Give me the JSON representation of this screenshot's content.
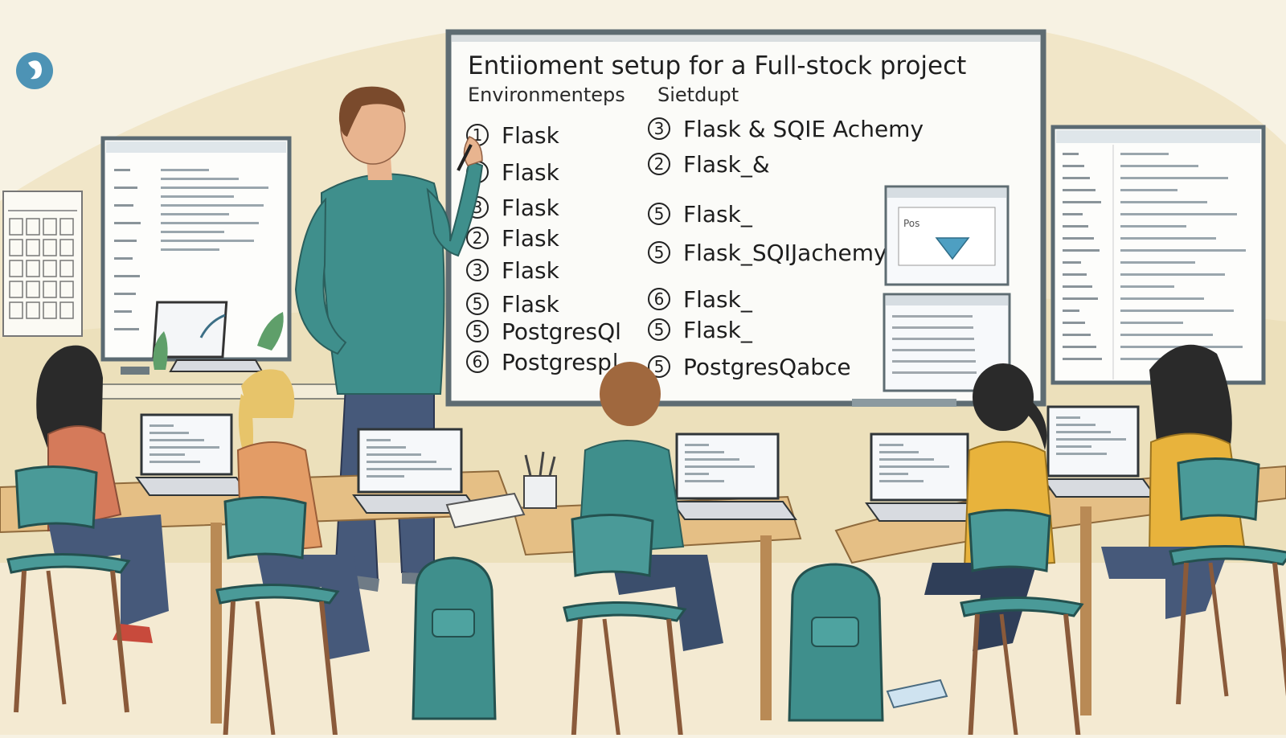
{
  "whiteboard": {
    "title": "Entiioment setup for a Full-stock project",
    "col1_header": "Environmenteps",
    "col2_header": "Sietdupt",
    "col1_items": [
      {
        "num": "1",
        "label": "Flask"
      },
      {
        "num": "6",
        "label": "Flask"
      },
      {
        "num": "3",
        "label": "Flask"
      },
      {
        "num": "2",
        "label": "Flask"
      },
      {
        "num": "3",
        "label": "Flask"
      },
      {
        "num": "5",
        "label": "Flask"
      },
      {
        "num": "5",
        "label": "PostgresQl"
      },
      {
        "num": "6",
        "label": "Postgresp|"
      }
    ],
    "col2_items": [
      {
        "num": "3",
        "label": "Flask & SQIE  Achemy"
      },
      {
        "num": "2",
        "label": "Flask_&"
      },
      {
        "num": "5",
        "label": "Flask_"
      },
      {
        "num": "5",
        "label": "Flask_SQIJachemy"
      },
      {
        "num": "6",
        "label": "Flask_"
      },
      {
        "num": "5",
        "label": "Flask_"
      },
      {
        "num": "5",
        "label": "PostgresQabce"
      }
    ]
  },
  "inset_screen": {
    "caption": "Pos"
  },
  "palette": {
    "wall": "#f3ead0",
    "wall_shade": "#e7d7a8",
    "board_frame": "#5a6a70",
    "board": "#fbfbf8",
    "teal": "#3f8f8c",
    "chair": "#4a9a98",
    "desk": "#e5bf85",
    "desk_leg": "#b98a55",
    "skin": "#e8b48f",
    "jeans": "#46597a"
  }
}
